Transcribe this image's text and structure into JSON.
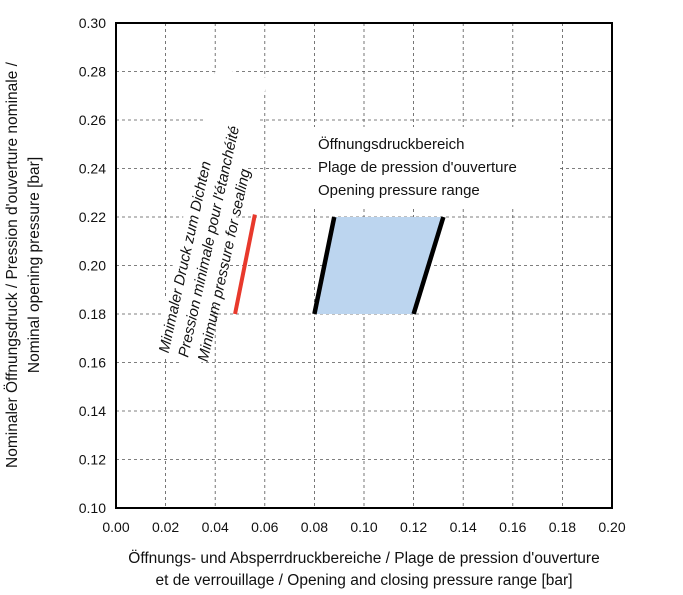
{
  "chart_data": {
    "type": "area",
    "xlabel": "Öffnungs- und Absperrdruckbereiche / Plage de pression d'ouverture et de verrouillage / Opening and closing pressure range [bar]",
    "xlabel_lines": [
      "Öffnungs- und Absperrdruckbereiche / Plage de pression d'ouverture",
      "et de verrouillage / Opening and closing pressure range [bar]"
    ],
    "ylabel": "Nominaler Öffnungsdruck / Pression d'ouverture nominale / Nominal opening pressure [bar]",
    "ylabel_lines": [
      "Nominaler Öffnungsdruck / Pression d'ouverture nominale /",
      "Nominal opening pressure [bar]"
    ],
    "xlim": [
      0.0,
      0.2
    ],
    "ylim": [
      0.1,
      0.3
    ],
    "xticks": [
      "0.00",
      "0.02",
      "0.04",
      "0.06",
      "0.08",
      "0.10",
      "0.12",
      "0.14",
      "0.16",
      "0.18",
      "0.20"
    ],
    "yticks": [
      "0.10",
      "0.12",
      "0.14",
      "0.16",
      "0.18",
      "0.20",
      "0.22",
      "0.24",
      "0.26",
      "0.28",
      "0.30"
    ],
    "grid": true,
    "series": [
      {
        "kind": "line",
        "color": "#e8392c",
        "points": [
          [
            0.048,
            0.18
          ],
          [
            0.056,
            0.221
          ]
        ]
      },
      {
        "kind": "polygon",
        "fill": "#bcd5ef",
        "edge_color": "#000000",
        "points": [
          [
            0.08,
            0.18
          ],
          [
            0.088,
            0.22
          ],
          [
            0.132,
            0.22
          ],
          [
            0.12,
            0.18
          ]
        ]
      }
    ],
    "annotations": {
      "sealing": [
        "Minimaler Druck zum Dichten",
        "Pression minimale pour l'étanchéité",
        "Minimum pressure for sealing"
      ],
      "range": [
        "Öffnungsdruckbereich",
        "Plage de pression d'ouverture",
        "Opening pressure range"
      ]
    }
  }
}
